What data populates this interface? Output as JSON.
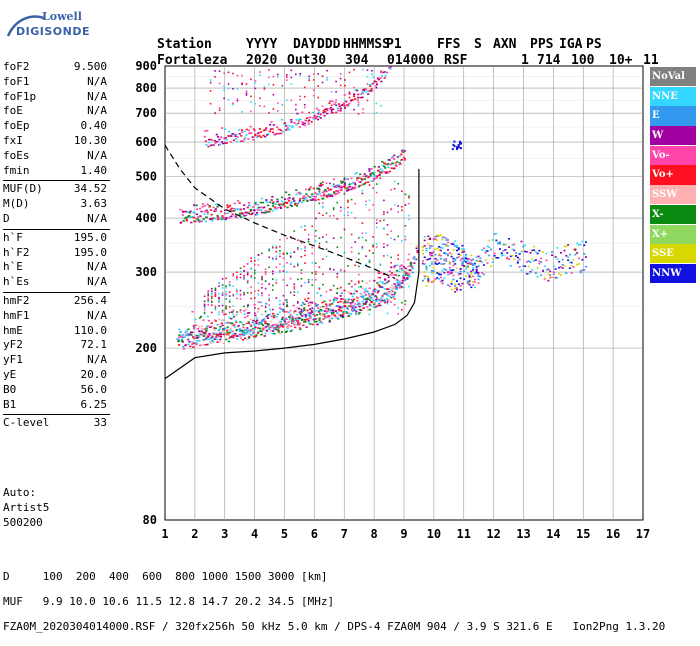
{
  "logo": {
    "line1": "Lowell",
    "line2": "DIGISONDE"
  },
  "header": {
    "row1": [
      "Station",
      "YYYY",
      "DAY",
      "DDD",
      "HHMMSS",
      "P1",
      "FFS",
      "S",
      "AXN",
      "PPS",
      "IGA",
      "PS"
    ],
    "row2": [
      "Fortaleza",
      "2020",
      "Out30",
      "304",
      "014000",
      "RSF",
      "",
      "1",
      "714",
      "100",
      "10+",
      "11"
    ]
  },
  "params": [
    {
      "label": "foF2",
      "value": "9.500"
    },
    {
      "label": "foF1",
      "value": "N/A"
    },
    {
      "label": "foF1p",
      "value": "N/A"
    },
    {
      "label": "foE",
      "value": "N/A"
    },
    {
      "label": "foEp",
      "value": "0.40"
    },
    {
      "label": "fxI",
      "value": "10.30"
    },
    {
      "label": "foEs",
      "value": "N/A"
    },
    {
      "label": "fmin",
      "value": "1.40"
    },
    {
      "label": "MUF(D)",
      "value": "34.52"
    },
    {
      "label": "M(D)",
      "value": "3.63"
    },
    {
      "label": "D",
      "value": "N/A"
    },
    {
      "label": "h`F",
      "value": "195.0"
    },
    {
      "label": "h`F2",
      "value": "195.0"
    },
    {
      "label": "h`E",
      "value": "N/A"
    },
    {
      "label": "h`Es",
      "value": "N/A"
    },
    {
      "label": "hmF2",
      "value": "256.4"
    },
    {
      "label": "hmF1",
      "value": "N/A"
    },
    {
      "label": "hmE",
      "value": "110.0"
    },
    {
      "label": "yF2",
      "value": "72.1"
    },
    {
      "label": "yF1",
      "value": "N/A"
    },
    {
      "label": "yE",
      "value": "20.0"
    },
    {
      "label": "B0",
      "value": "56.0"
    },
    {
      "label": "B1",
      "value": "6.25"
    },
    {
      "label": "C-level",
      "value": "33"
    }
  ],
  "auto": {
    "line1": "Auto:",
    "line2": "Artist5",
    "line3": "500200"
  },
  "legend": [
    {
      "label": "NoVal",
      "color": "#808080"
    },
    {
      "label": "NNE",
      "color": "#33d6ff"
    },
    {
      "label": "E",
      "color": "#3399ee"
    },
    {
      "label": "W",
      "color": "#a000a0"
    },
    {
      "label": "Vo-",
      "color": "#ff44aa"
    },
    {
      "label": "Vo+",
      "color": "#ff1020"
    },
    {
      "label": "SSW",
      "color": "#ffb0b0"
    },
    {
      "label": "X-",
      "color": "#0a8a10"
    },
    {
      "label": "X+",
      "color": "#90d860"
    },
    {
      "label": "SSE",
      "color": "#d8d800"
    },
    {
      "label": "NNW",
      "color": "#1010e0"
    }
  ],
  "footer": {
    "line1": "D     100  200  400  600  800 1000 1500 3000 [km]",
    "line2": "MUF   9.9 10.0 10.6 11.5 12.8 14.7 20.2 34.5 [MHz]",
    "line3": "FZA0M_2020304014000.RSF / 320fx256h 50 kHz 5.0 km / DPS-4 FZA0M 904 / 3.9 S 321.6 E   Ion2Png 1.3.20"
  },
  "chart_data": {
    "type": "scatter",
    "xlim": [
      1,
      17
    ],
    "ylim": [
      80,
      900
    ],
    "yscale": "log",
    "xticks": [
      "1",
      "2",
      "3",
      "4",
      "5",
      "6",
      "7",
      "8",
      "9",
      "10",
      "11",
      "12",
      "13",
      "14",
      "15",
      "16",
      "17"
    ],
    "yticks": [
      "80",
      "200",
      "300",
      "400",
      "500",
      "600",
      "700",
      "800",
      "900"
    ],
    "grid": true,
    "traces": {
      "F2_ordinary": {
        "x": [
          1.4,
          2,
          3,
          4,
          5,
          6,
          7,
          8,
          8.5,
          9,
          9.3,
          9.5
        ],
        "y": [
          205,
          208,
          212,
          217,
          224,
          232,
          242,
          255,
          265,
          285,
          310,
          360
        ]
      },
      "F2_extraordinary": {
        "x": [
          1.9,
          3,
          4,
          5,
          6,
          7,
          8,
          9,
          9.7,
          10.3
        ],
        "y": [
          218,
          222,
          228,
          234,
          244,
          255,
          270,
          300,
          330,
          400
        ]
      },
      "second_hop": {
        "x": [
          1.5,
          2.5,
          3.5,
          4.5,
          5.5,
          6.5,
          7.5,
          8.5,
          9.2
        ],
        "y": [
          395,
          400,
          408,
          420,
          435,
          455,
          480,
          520,
          560
        ]
      },
      "third_hop": {
        "x": [
          2.3,
          3,
          4,
          5,
          6,
          7,
          7.8,
          8.5
        ],
        "y": [
          595,
          605,
          620,
          645,
          680,
          730,
          790,
          880
        ]
      },
      "spread_F": {
        "x": [
          9.7,
          10.2,
          10.8,
          11.4,
          12,
          12.6,
          13.2,
          13.8,
          14.4,
          15
        ],
        "y": [
          320,
          330,
          310,
          300,
          345,
          330,
          325,
          315,
          320,
          330
        ]
      },
      "true_height_profile": {
        "x": [
          1,
          2,
          3,
          4,
          5,
          6,
          7,
          8,
          8.7,
          9.1,
          9.35,
          9.5,
          9.5
        ],
        "y": [
          170,
          190,
          195,
          197,
          200,
          204,
          210,
          218,
          227,
          238,
          255,
          300,
          520
        ]
      },
      "dashed_profile": {
        "x": [
          1,
          1.5,
          2,
          3,
          4,
          5,
          6,
          7,
          8,
          8.7
        ],
        "y": [
          590,
          520,
          470,
          420,
          390,
          365,
          345,
          325,
          305,
          290
        ]
      }
    }
  }
}
